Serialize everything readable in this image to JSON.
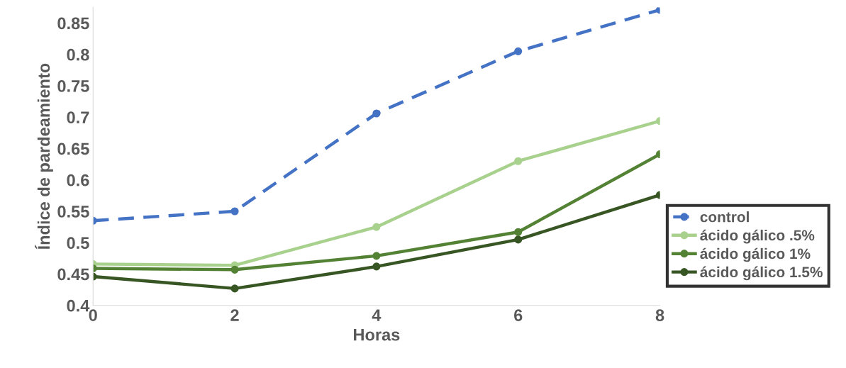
{
  "chart_data": {
    "type": "line",
    "xlabel": "Horas",
    "ylabel": "Índice de pardeamiento",
    "x": [
      0,
      2,
      4,
      6,
      8
    ],
    "xlim": [
      0,
      8
    ],
    "xticks": [
      0,
      2,
      4,
      6,
      8
    ],
    "ylim": [
      0.4,
      0.875
    ],
    "yticks": [
      0.4,
      0.45,
      0.5,
      0.55,
      0.6,
      0.65,
      0.7,
      0.75,
      0.8,
      0.85
    ],
    "marker": "circle",
    "grid": false,
    "legend": "right",
    "series": [
      {
        "name": "control",
        "color": "#4472c4",
        "line_style": "dashed",
        "values": [
          0.535,
          0.55,
          0.706,
          0.805,
          0.871
        ]
      },
      {
        "name": "ácido gálico .5%",
        "color": "#a9d18e",
        "line_style": "solid",
        "values": [
          0.466,
          0.464,
          0.525,
          0.63,
          0.694
        ]
      },
      {
        "name": "ácido gálico 1%",
        "color": "#548235",
        "line_style": "solid",
        "values": [
          0.459,
          0.457,
          0.479,
          0.517,
          0.641
        ]
      },
      {
        "name": "ácido gálico 1.5%",
        "color": "#375623",
        "line_style": "solid",
        "values": [
          0.446,
          0.427,
          0.462,
          0.505,
          0.576
        ]
      }
    ]
  }
}
